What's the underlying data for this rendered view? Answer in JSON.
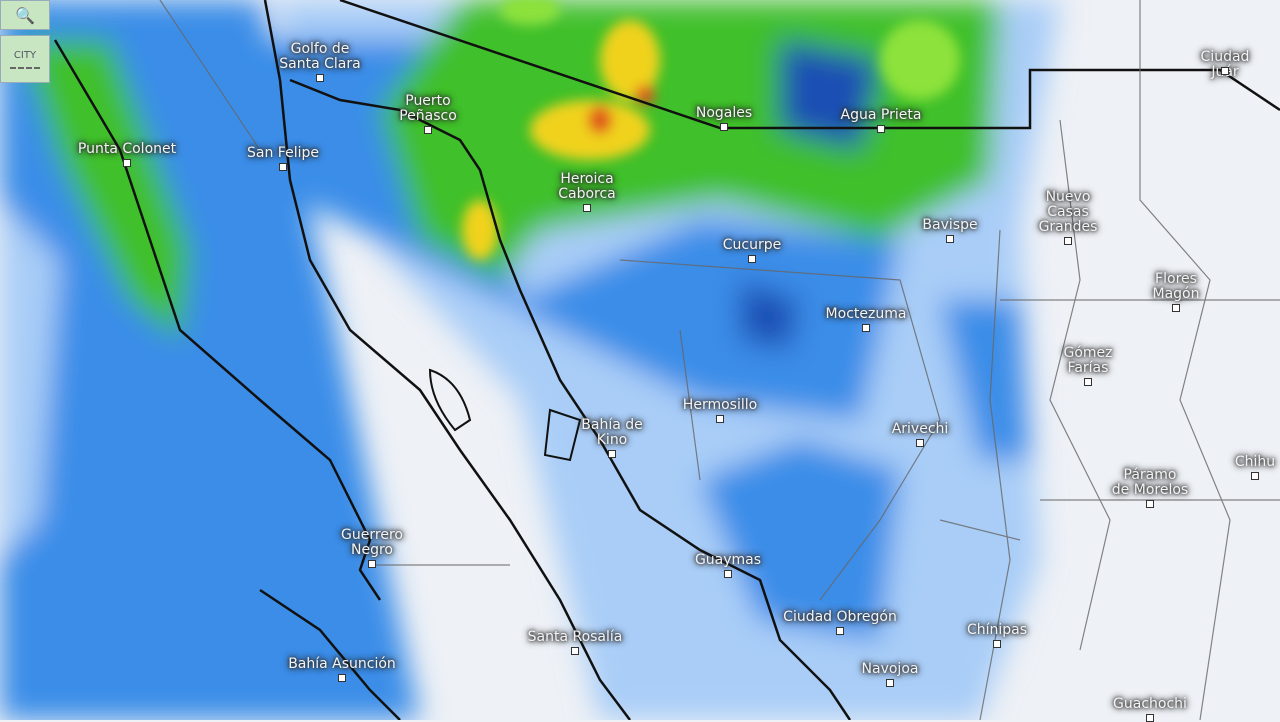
{
  "controls": {
    "search_icon": "magnifier-icon",
    "city_label": "CITY"
  },
  "colors": {
    "heavy": "#e0561e",
    "moderate": "#f0d21e",
    "green": "#3fc02a",
    "light_green": "#8de23a",
    "blue_dark": "#1e4fb4",
    "blue": "#3b8de8",
    "blue_light": "#a9cdf7",
    "land": "#eef1f6"
  },
  "places": [
    {
      "name": "Golfo de\nSanta Clara"
    },
    {
      "name": "Puerto\nPeñasco"
    },
    {
      "name": "San Felipe"
    },
    {
      "name": "Punta Colonet"
    },
    {
      "name": "Heroica\nCaborca"
    },
    {
      "name": "Nogales"
    },
    {
      "name": "Agua Prieta"
    },
    {
      "name": "Ciudad Juár"
    },
    {
      "name": "Bavispe"
    },
    {
      "name": "Nuevo\nCasas\nGrandes"
    },
    {
      "name": "Cucurpe"
    },
    {
      "name": "Moctezuma"
    },
    {
      "name": "Flores\nMagón"
    },
    {
      "name": "Gómez\nFarías"
    },
    {
      "name": "Hermosillo"
    },
    {
      "name": "Bahía de\nKino"
    },
    {
      "name": "Arivechi"
    },
    {
      "name": "Chihu"
    },
    {
      "name": "Páramo\nde Morelos"
    },
    {
      "name": "Guerrero\nNegro"
    },
    {
      "name": "Guaymas"
    },
    {
      "name": "Ciudad Obregón"
    },
    {
      "name": "Santa Rosalía"
    },
    {
      "name": "Bahía Asunción"
    },
    {
      "name": "Navojoa"
    },
    {
      "name": "Chínipas"
    },
    {
      "name": "Guachochi"
    }
  ]
}
